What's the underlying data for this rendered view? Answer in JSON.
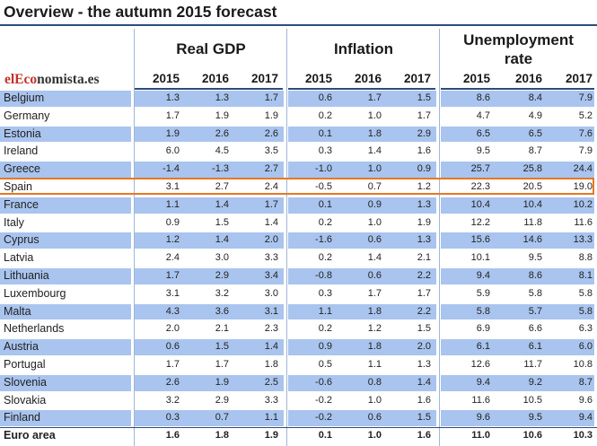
{
  "title": "Overview - the autumn 2015 forecast",
  "logo": {
    "part1": "elEco",
    "part2": "nomista.es"
  },
  "groups": [
    {
      "name": "Real GDP",
      "lines": [
        "Real GDP"
      ]
    },
    {
      "name": "Inflation",
      "lines": [
        "Inflation"
      ]
    },
    {
      "name": "Unemployment rate",
      "lines": [
        "Unemployment",
        "rate"
      ]
    }
  ],
  "years": [
    "2015",
    "2016",
    "2017"
  ],
  "chart_data": {
    "type": "table",
    "title": "Overview - the autumn 2015 forecast",
    "columns": [
      "Real GDP 2015",
      "Real GDP 2016",
      "Real GDP 2017",
      "Inflation 2015",
      "Inflation 2016",
      "Inflation 2017",
      "Unemployment rate 2015",
      "Unemployment rate 2016",
      "Unemployment rate 2017"
    ],
    "rows": [
      {
        "country": "Belgium",
        "values": [
          "1.3",
          "1.3",
          "1.7",
          "0.6",
          "1.7",
          "1.5",
          "8.6",
          "8.4",
          "7.9"
        ]
      },
      {
        "country": "Germany",
        "values": [
          "1.7",
          "1.9",
          "1.9",
          "0.2",
          "1.0",
          "1.7",
          "4.7",
          "4.9",
          "5.2"
        ]
      },
      {
        "country": "Estonia",
        "values": [
          "1.9",
          "2.6",
          "2.6",
          "0.1",
          "1.8",
          "2.9",
          "6.5",
          "6.5",
          "7.6"
        ]
      },
      {
        "country": "Ireland",
        "values": [
          "6.0",
          "4.5",
          "3.5",
          "0.3",
          "1.4",
          "1.6",
          "9.5",
          "8.7",
          "7.9"
        ]
      },
      {
        "country": "Greece",
        "values": [
          "-1.4",
          "-1.3",
          "2.7",
          "-1.0",
          "1.0",
          "0.9",
          "25.7",
          "25.8",
          "24.4"
        ]
      },
      {
        "country": "Spain",
        "values": [
          "3.1",
          "2.7",
          "2.4",
          "-0.5",
          "0.7",
          "1.2",
          "22.3",
          "20.5",
          "19.0"
        ]
      },
      {
        "country": "France",
        "values": [
          "1.1",
          "1.4",
          "1.7",
          "0.1",
          "0.9",
          "1.3",
          "10.4",
          "10.4",
          "10.2"
        ]
      },
      {
        "country": "Italy",
        "values": [
          "0.9",
          "1.5",
          "1.4",
          "0.2",
          "1.0",
          "1.9",
          "12.2",
          "11.8",
          "11.6"
        ]
      },
      {
        "country": "Cyprus",
        "values": [
          "1.2",
          "1.4",
          "2.0",
          "-1.6",
          "0.6",
          "1.3",
          "15.6",
          "14.6",
          "13.3"
        ]
      },
      {
        "country": "Latvia",
        "values": [
          "2.4",
          "3.0",
          "3.3",
          "0.2",
          "1.4",
          "2.1",
          "10.1",
          "9.5",
          "8.8"
        ]
      },
      {
        "country": "Lithuania",
        "values": [
          "1.7",
          "2.9",
          "3.4",
          "-0.8",
          "0.6",
          "2.2",
          "9.4",
          "8.6",
          "8.1"
        ]
      },
      {
        "country": "Luxembourg",
        "values": [
          "3.1",
          "3.2",
          "3.0",
          "0.3",
          "1.7",
          "1.7",
          "5.9",
          "5.8",
          "5.8"
        ]
      },
      {
        "country": "Malta",
        "values": [
          "4.3",
          "3.6",
          "3.1",
          "1.1",
          "1.8",
          "2.2",
          "5.8",
          "5.7",
          "5.8"
        ]
      },
      {
        "country": "Netherlands",
        "values": [
          "2.0",
          "2.1",
          "2.3",
          "0.2",
          "1.2",
          "1.5",
          "6.9",
          "6.6",
          "6.3"
        ]
      },
      {
        "country": "Austria",
        "values": [
          "0.6",
          "1.5",
          "1.4",
          "0.9",
          "1.8",
          "2.0",
          "6.1",
          "6.1",
          "6.0"
        ]
      },
      {
        "country": "Portugal",
        "values": [
          "1.7",
          "1.7",
          "1.8",
          "0.5",
          "1.1",
          "1.3",
          "12.6",
          "11.7",
          "10.8"
        ]
      },
      {
        "country": "Slovenia",
        "values": [
          "2.6",
          "1.9",
          "2.5",
          "-0.6",
          "0.8",
          "1.4",
          "9.4",
          "9.2",
          "8.7"
        ]
      },
      {
        "country": "Slovakia",
        "values": [
          "3.2",
          "2.9",
          "3.3",
          "-0.2",
          "1.0",
          "1.6",
          "11.6",
          "10.5",
          "9.6"
        ]
      },
      {
        "country": "Finland",
        "values": [
          "0.3",
          "0.7",
          "1.1",
          "-0.2",
          "0.6",
          "1.5",
          "9.6",
          "9.5",
          "9.4"
        ]
      },
      {
        "country": "Euro area",
        "values": [
          "1.6",
          "1.8",
          "1.9",
          "0.1",
          "1.0",
          "1.6",
          "11.0",
          "10.6",
          "10.3"
        ]
      }
    ],
    "highlighted_row": "Spain",
    "total_row": "Euro area",
    "colors": {
      "shade": "#a9c4ee",
      "highlight": "#e87722",
      "rule": "#2f4b7c",
      "logo_red": "#c0322a"
    }
  }
}
